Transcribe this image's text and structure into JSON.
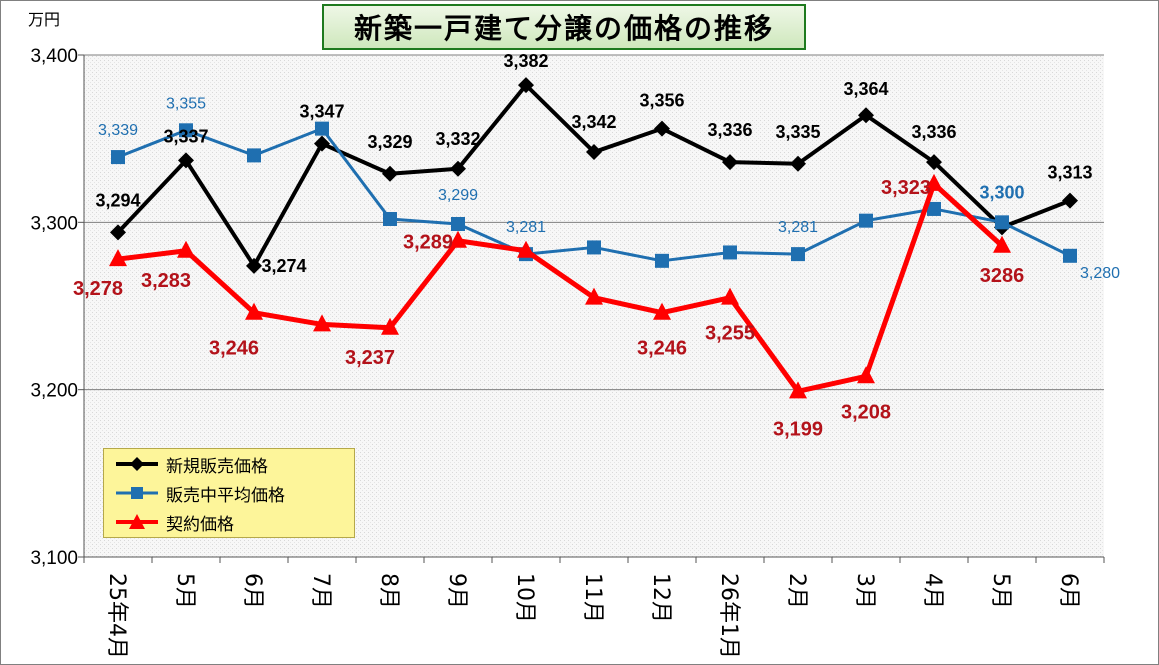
{
  "title": "新築一戸建て分譲の価格の推移",
  "unit": "万円",
  "chart_data": {
    "type": "line",
    "title": "新築一戸建て分譲の価格の推移",
    "ylabel": "万円",
    "ylim": [
      3100,
      3400
    ],
    "yticks": [
      "3,100",
      "3,200",
      "3,300",
      "3,400"
    ],
    "grid": true,
    "legend_position": "bottom-left",
    "categories": [
      "25年4月",
      "5月",
      "6月",
      "7月",
      "8月",
      "9月",
      "10月",
      "11月",
      "12月",
      "26年1月",
      "2月",
      "3月",
      "4月",
      "5月",
      "6月"
    ],
    "series": [
      {
        "name": "新規販売価格",
        "color": "#000000",
        "marker": "diamond",
        "values": [
          3294,
          3337,
          3274,
          3347,
          3329,
          3332,
          3382,
          3342,
          3356,
          3336,
          3335,
          3364,
          3336,
          3297,
          3313
        ],
        "labels": [
          "3,294",
          "3,337",
          "3,274",
          "3,347",
          "3,329",
          "3,332",
          "3,382",
          "3,342",
          "3,356",
          "3,336",
          "3,335",
          "3,364",
          "3,336",
          "",
          "3,313"
        ]
      },
      {
        "name": "販売中平均価格",
        "color": "#1f6fb0",
        "marker": "square",
        "values": [
          3339,
          3355,
          3340,
          3356,
          3302,
          3299,
          3281,
          3285,
          3277,
          3282,
          3281,
          3301,
          3308,
          3300,
          3280
        ],
        "labels": [
          "3,339",
          "3,355",
          "",
          "",
          "",
          "3,299",
          "3,281",
          "",
          "",
          "",
          "3,281",
          "",
          "",
          "3,300",
          "3,280"
        ]
      },
      {
        "name": "契約価格",
        "color": "#ff0000",
        "marker": "triangle",
        "values": [
          3278,
          3283,
          3246,
          3239,
          3237,
          3289,
          3283,
          3255,
          3246,
          3255,
          3199,
          3208,
          3323,
          3286,
          null
        ],
        "labels": [
          "3,278",
          "3,283",
          "3,246",
          "",
          "3,237",
          "3,289",
          "",
          "",
          "3,246",
          "3,255",
          "3,199",
          "3,208",
          "3,323",
          "3286",
          ""
        ]
      }
    ]
  }
}
